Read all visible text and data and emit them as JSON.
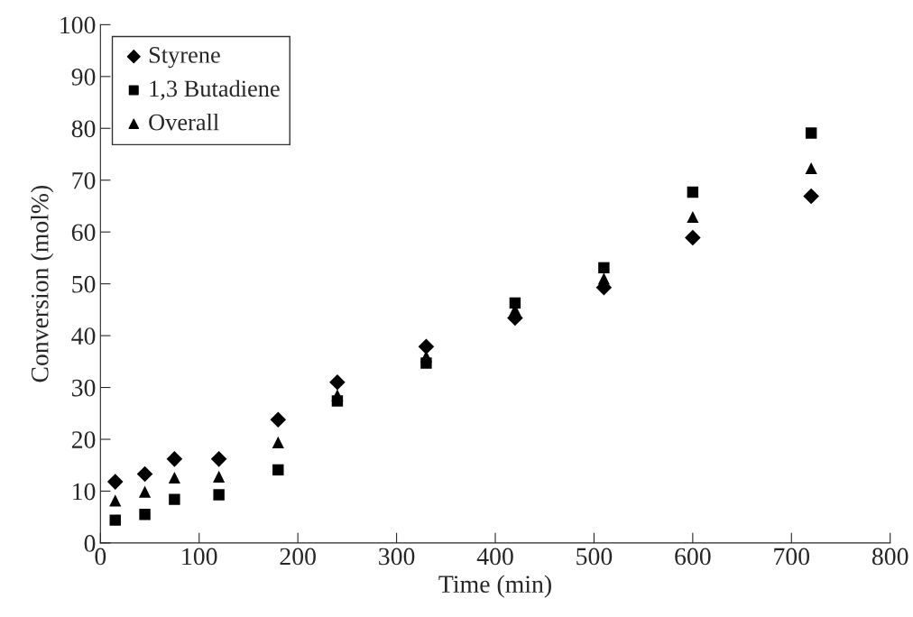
{
  "chart_data": {
    "type": "scatter",
    "xlabel": "Time (min)",
    "ylabel": "Conversion (mol%)",
    "xlim": [
      0,
      800
    ],
    "xticks": [
      0,
      100,
      200,
      300,
      400,
      500,
      600,
      700,
      800
    ],
    "ylim": [
      0,
      100
    ],
    "yticks": [
      0,
      10,
      20,
      30,
      40,
      50,
      60,
      70,
      80,
      90,
      100
    ],
    "grid": false,
    "legend": "top left",
    "series": [
      {
        "name": "Styrene",
        "color": "#000000",
        "marker": "diamond",
        "x": [
          15,
          45,
          75,
          120,
          180,
          240,
          330,
          420,
          510,
          600,
          720
        ],
        "values": [
          11.8,
          13.3,
          16.2,
          16.2,
          23.8,
          31,
          37.9,
          43.4,
          49.3,
          58.9,
          66.9
        ]
      },
      {
        "name": "1,3 Butadiene",
        "color": "#000000",
        "marker": "square",
        "x": [
          15,
          45,
          75,
          120,
          180,
          240,
          330,
          420,
          510,
          600,
          720
        ],
        "values": [
          4.4,
          5.5,
          8.4,
          9.3,
          14.1,
          27.4,
          34.7,
          46.3,
          53.1,
          67.7,
          79.1
        ]
      },
      {
        "name": "Overall",
        "color": "#000000",
        "marker": "triangle",
        "x": [
          15,
          45,
          75,
          120,
          180,
          240,
          330,
          420,
          510,
          600,
          720
        ],
        "values": [
          8.2,
          9.9,
          12.6,
          12.8,
          19.4,
          28.5,
          36,
          45,
          51,
          62.9,
          72.3
        ]
      }
    ]
  }
}
